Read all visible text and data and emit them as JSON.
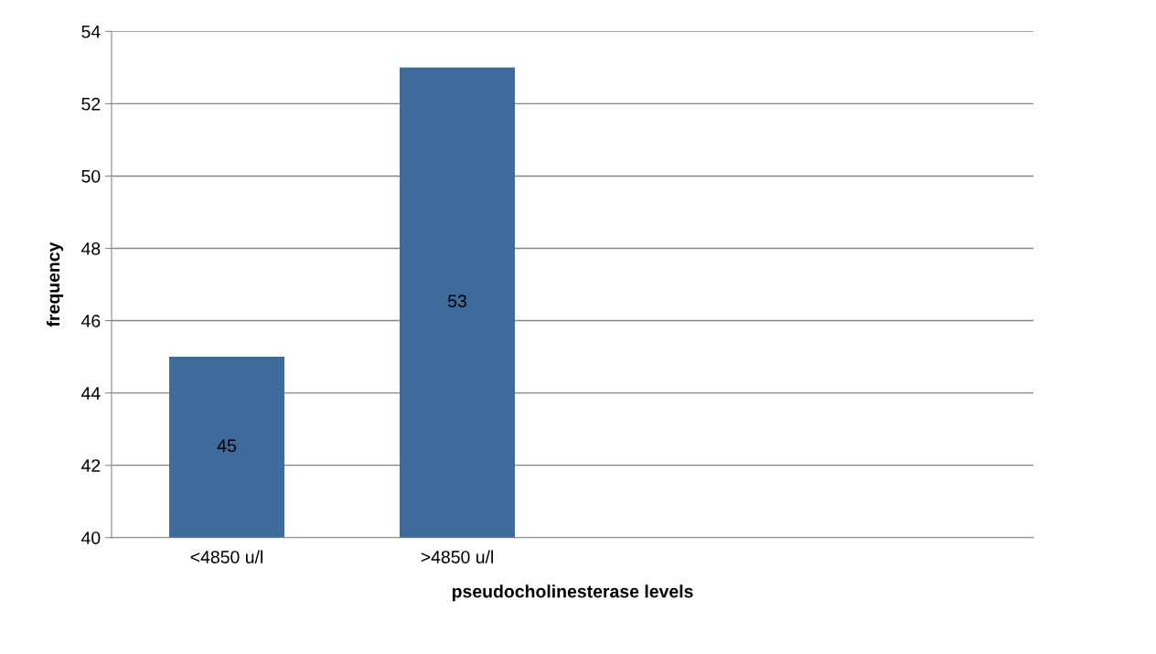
{
  "chart_data": {
    "type": "bar",
    "xlabel": "pseudocholinesterase levels",
    "ylabel": "frequency",
    "categories": [
      "<4850 u/l",
      ">4850 u/l",
      null,
      null
    ],
    "values": [
      45,
      53,
      null,
      null
    ],
    "color": "#3f6a9c",
    "ylim": [
      40,
      54
    ],
    "yticks": [
      40,
      42,
      44,
      46,
      48,
      50,
      52,
      54
    ],
    "grid": "y",
    "data_labels": true,
    "legend": false
  }
}
